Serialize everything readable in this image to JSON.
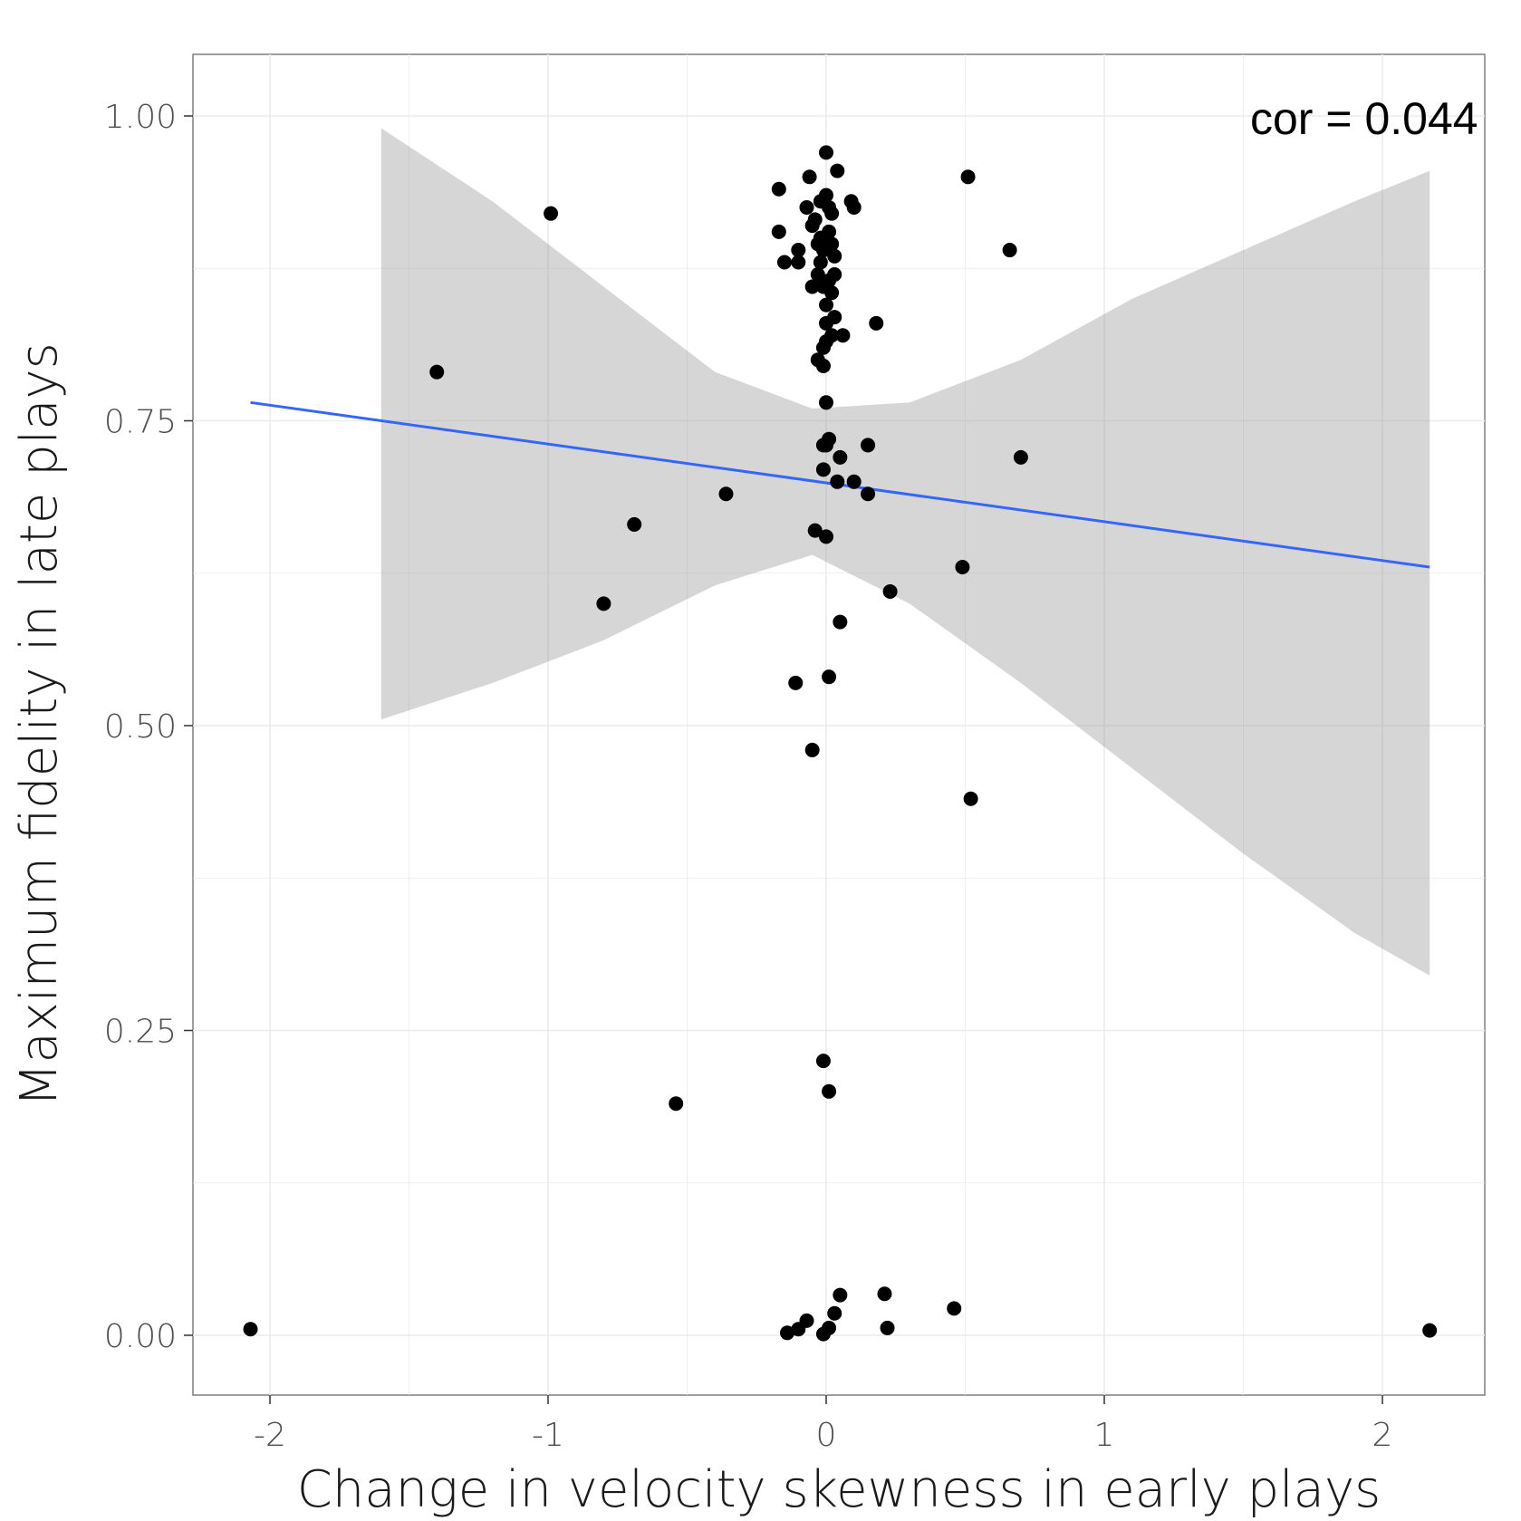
{
  "chart_data": {
    "type": "scatter",
    "xlabel": "Change in velocity skewness in early plays",
    "ylabel": "Maximum fidelity in late plays",
    "xlim": [
      -2.3,
      2.35
    ],
    "ylim": [
      -0.05,
      1.05
    ],
    "x_ticks": [
      -2,
      -1,
      0,
      1,
      2
    ],
    "x_tick_labels": [
      "-2",
      "-1",
      "0",
      "1",
      "2"
    ],
    "y_ticks": [
      0,
      0.25,
      0.5,
      0.75,
      1.0
    ],
    "y_tick_labels": [
      "0.00",
      "0.25",
      "0.50",
      "0.75",
      "1.00"
    ],
    "grid": true,
    "annotation": "cor = 0.044",
    "colors": {
      "points": "#000000",
      "fit_line": "#3366ff",
      "ribbon": "#999999",
      "grid": "#ebebeb",
      "border": "#7f7f7f"
    },
    "points": [
      [
        -2.07,
        0.005
      ],
      [
        -0.99,
        0.92
      ],
      [
        -1.4,
        0.79
      ],
      [
        -0.8,
        0.6
      ],
      [
        -0.69,
        0.665
      ],
      [
        -0.36,
        0.69
      ],
      [
        -0.54,
        0.19
      ],
      [
        -0.17,
        0.94
      ],
      [
        -0.17,
        0.905
      ],
      [
        -0.15,
        0.88
      ],
      [
        -0.1,
        0.89
      ],
      [
        -0.07,
        0.925
      ],
      [
        -0.06,
        0.95
      ],
      [
        -0.05,
        0.86
      ],
      [
        -0.05,
        0.91
      ],
      [
        -0.04,
        0.915
      ],
      [
        -0.03,
        0.87
      ],
      [
        -0.03,
        0.895
      ],
      [
        -0.02,
        0.93
      ],
      [
        -0.02,
        0.9
      ],
      [
        -0.02,
        0.88
      ],
      [
        -0.01,
        0.89
      ],
      [
        -0.01,
        0.86
      ],
      [
        0.0,
        0.97
      ],
      [
        0.0,
        0.935
      ],
      [
        0.01,
        0.925
      ],
      [
        0.01,
        0.905
      ],
      [
        0.02,
        0.92
      ],
      [
        0.02,
        0.895
      ],
      [
        0.03,
        0.885
      ],
      [
        0.03,
        0.87
      ],
      [
        0.01,
        0.865
      ],
      [
        0.02,
        0.855
      ],
      [
        0.0,
        0.845
      ],
      [
        0.0,
        0.83
      ],
      [
        0.02,
        0.82
      ],
      [
        0.03,
        0.835
      ],
      [
        0.0,
        0.815
      ],
      [
        -0.01,
        0.81
      ],
      [
        -0.03,
        0.8
      ],
      [
        -0.01,
        0.795
      ],
      [
        0.04,
        0.955
      ],
      [
        0.09,
        0.93
      ],
      [
        0.1,
        0.925
      ],
      [
        0.06,
        0.82
      ],
      [
        0.18,
        0.83
      ],
      [
        -0.1,
        0.88
      ],
      [
        0.51,
        0.95
      ],
      [
        0.66,
        0.89
      ],
      [
        0.0,
        0.765
      ],
      [
        0.01,
        0.735
      ],
      [
        -0.01,
        0.73
      ],
      [
        0.0,
        0.73
      ],
      [
        0.05,
        0.72
      ],
      [
        0.15,
        0.73
      ],
      [
        -0.01,
        0.71
      ],
      [
        0.04,
        0.7
      ],
      [
        0.1,
        0.7
      ],
      [
        0.15,
        0.69
      ],
      [
        0.7,
        0.72
      ],
      [
        -0.04,
        0.66
      ],
      [
        0.0,
        0.655
      ],
      [
        0.49,
        0.63
      ],
      [
        0.23,
        0.61
      ],
      [
        0.05,
        0.585
      ],
      [
        -0.11,
        0.535
      ],
      [
        0.01,
        0.54
      ],
      [
        -0.05,
        0.48
      ],
      [
        0.52,
        0.44
      ],
      [
        -0.01,
        0.225
      ],
      [
        0.01,
        0.2
      ],
      [
        -0.14,
        0.002
      ],
      [
        -0.1,
        0.005
      ],
      [
        -0.07,
        0.012
      ],
      [
        -0.01,
        0.001
      ],
      [
        0.01,
        0.006
      ],
      [
        0.03,
        0.018
      ],
      [
        0.05,
        0.033
      ],
      [
        0.21,
        0.034
      ],
      [
        0.22,
        0.006
      ],
      [
        0.46,
        0.022
      ],
      [
        2.17,
        0.004
      ]
    ],
    "fit_line": {
      "x": [
        -2.07,
        2.17
      ],
      "y": [
        0.765,
        0.63
      ]
    },
    "confidence_band": {
      "x": [
        -1.6,
        -1.2,
        -0.8,
        -0.4,
        -0.05,
        0.3,
        0.7,
        1.1,
        1.5,
        1.9,
        2.17
      ],
      "upper": [
        0.99,
        0.93,
        0.86,
        0.79,
        0.76,
        0.765,
        0.8,
        0.85,
        0.89,
        0.93,
        0.955
      ],
      "lower": [
        0.505,
        0.535,
        0.57,
        0.615,
        0.64,
        0.6,
        0.535,
        0.465,
        0.395,
        0.33,
        0.295
      ]
    }
  }
}
